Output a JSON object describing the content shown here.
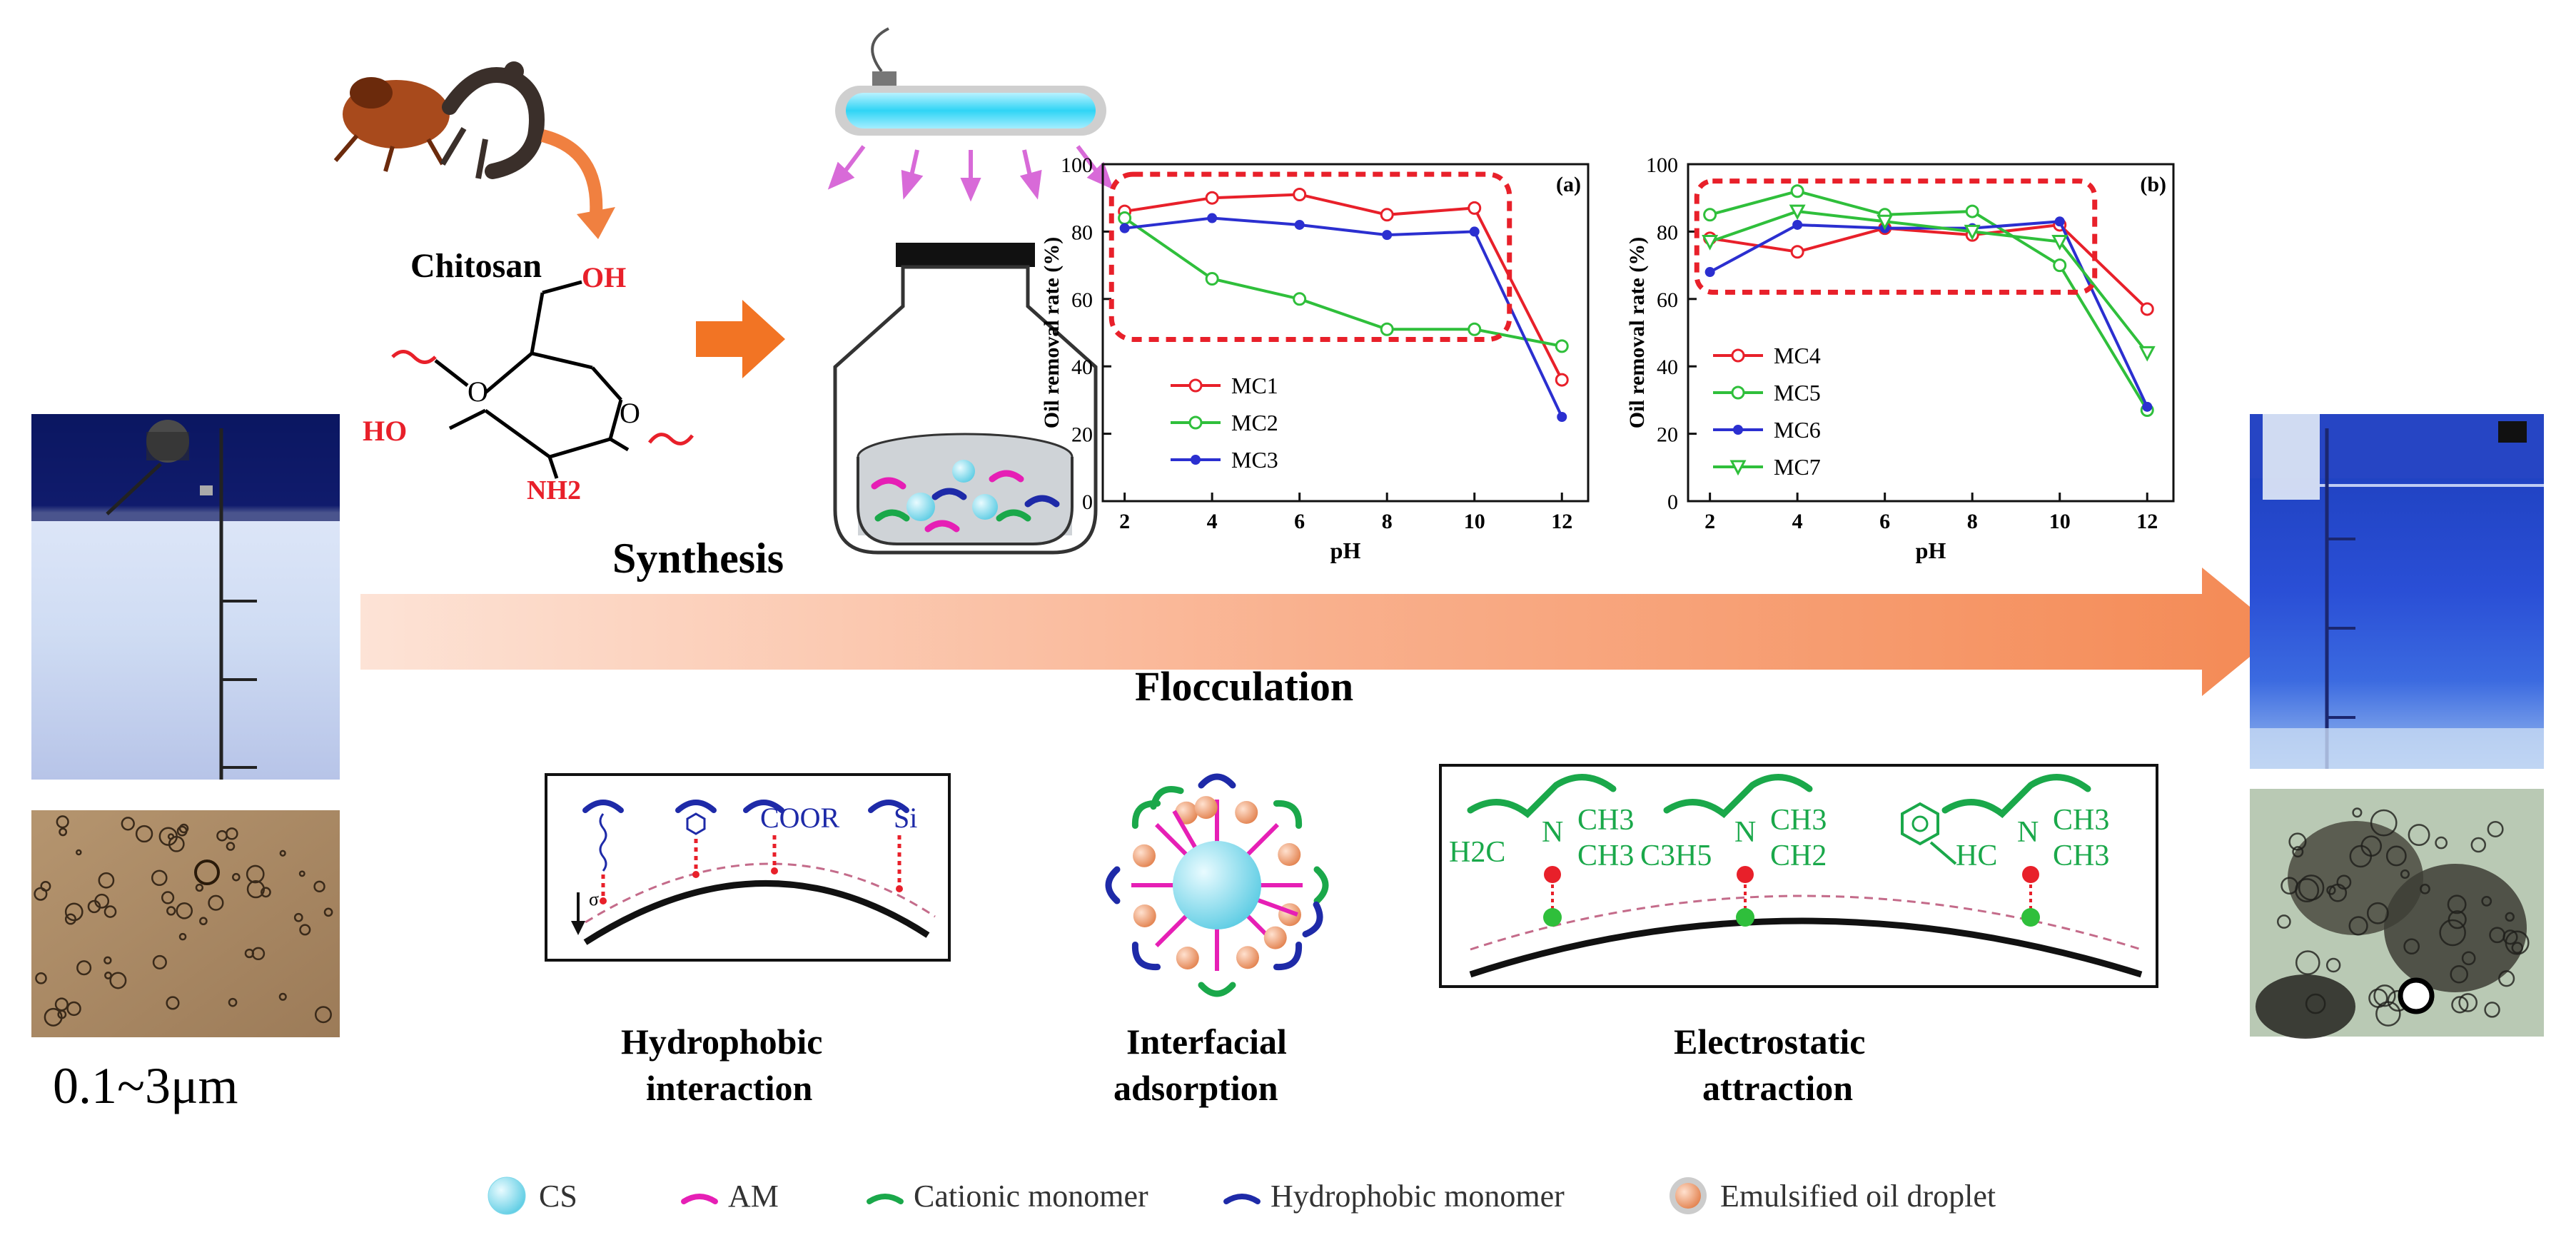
{
  "synthesis": {
    "chitosan_label": "Chitosan",
    "oh_label": "OH",
    "ho_label": "HO",
    "nh2_label": "NH2",
    "ring_o": "O",
    "ring_o2": "O",
    "synthesis_label": "Synthesis"
  },
  "flocculation_label": "Flocculation",
  "before_sample": {
    "size_label": "0.1~3μm"
  },
  "mechanisms": {
    "hydrophobic": {
      "line1": "Hydrophobic",
      "line2": "interaction",
      "cooR": "COOR",
      "si": "Si",
      "sigma": "σ"
    },
    "interfacial": {
      "line1": "Interfacial",
      "line2": "adsorption"
    },
    "electrostatic": {
      "line1": "Electrostatic",
      "line2": "attraction",
      "h2c": "H2C",
      "n1": "N",
      "ch3a": "CH3",
      "ch3b": "CH3",
      "c3h5": "C3H5",
      "n2": "N",
      "ch3c": "CH3",
      "ch2": "CH2",
      "hc": "HC",
      "n3": "N",
      "ch3d": "CH3",
      "ch3e": "CH3"
    }
  },
  "legend": [
    {
      "name": "CS",
      "color": "#7fd8ea"
    },
    {
      "name": "AM",
      "color": "#e61fb5"
    },
    {
      "name": "Cationic monomer",
      "color": "#1aa84a"
    },
    {
      "name": "Hydrophobic monomer",
      "color": "#1e2aa8"
    },
    {
      "name": "Emulsified oil droplet",
      "color": "#f0a57a"
    }
  ],
  "colors": {
    "arrow": "#f48f5e",
    "red": "#e8202a",
    "green": "#2fbf3b",
    "blue": "#2b2fd0"
  },
  "chart_data": [
    {
      "type": "line",
      "panel_label": "(a)",
      "xlabel": "pH",
      "ylabel": "Oil removal rate (%)",
      "xlim": [
        1.5,
        12.6
      ],
      "ylim": [
        0,
        100
      ],
      "xticks": [
        2,
        4,
        6,
        8,
        10,
        12
      ],
      "yticks": [
        0,
        20,
        40,
        60,
        80,
        100
      ],
      "x": [
        2,
        4,
        6,
        8,
        10,
        12
      ],
      "series": [
        {
          "name": "MC1",
          "color": "#e8202a",
          "marker": "circle",
          "values": [
            86,
            90,
            91,
            85,
            87,
            36
          ]
        },
        {
          "name": "MC2",
          "color": "#2fbf3b",
          "marker": "circle",
          "values": [
            84,
            66,
            60,
            51,
            51,
            46
          ]
        },
        {
          "name": "MC3",
          "color": "#2b2fd0",
          "marker": "dot",
          "values": [
            81,
            84,
            82,
            79,
            80,
            25
          ]
        }
      ]
    },
    {
      "type": "line",
      "panel_label": "(b)",
      "xlabel": "pH",
      "ylabel": "Oil removal rate (%)",
      "xlim": [
        1.5,
        12.6
      ],
      "ylim": [
        0,
        100
      ],
      "xticks": [
        2,
        4,
        6,
        8,
        10,
        12
      ],
      "yticks": [
        0,
        20,
        40,
        60,
        80,
        100
      ],
      "x": [
        2,
        4,
        6,
        8,
        10,
        12
      ],
      "series": [
        {
          "name": "MC4",
          "color": "#e8202a",
          "marker": "circle",
          "values": [
            78,
            74,
            81,
            79,
            82,
            57
          ]
        },
        {
          "name": "MC5",
          "color": "#2fbf3b",
          "marker": "circle",
          "values": [
            85,
            92,
            85,
            86,
            70,
            27
          ]
        },
        {
          "name": "MC6",
          "color": "#2b2fd0",
          "marker": "dot",
          "values": [
            68,
            82,
            81,
            81,
            83,
            28
          ]
        },
        {
          "name": "MC7",
          "color": "#2fbf3b",
          "marker": "triangle",
          "values": [
            77,
            86,
            83,
            80,
            77,
            44
          ]
        }
      ]
    }
  ]
}
